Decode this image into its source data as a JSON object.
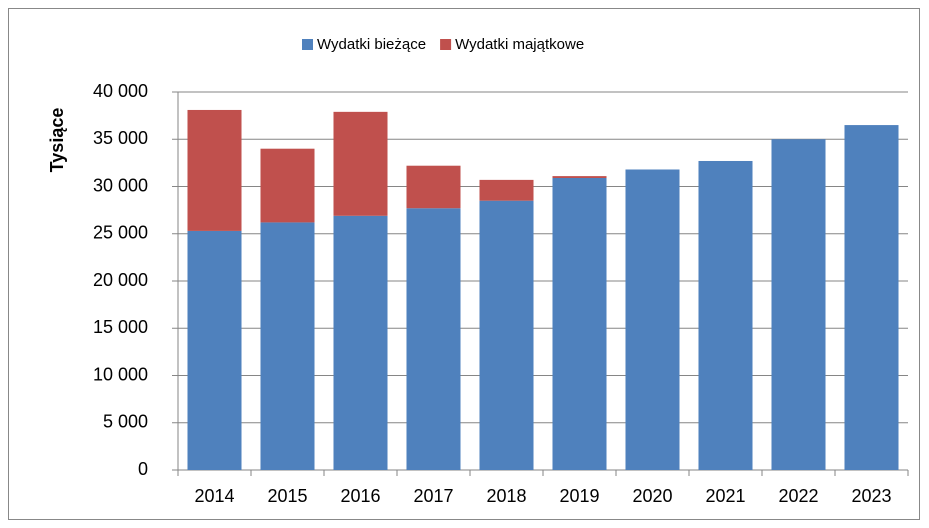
{
  "chart_data": {
    "type": "stacked_bar",
    "y_axis_label": "Tysiące",
    "categories": [
      "2014",
      "2015",
      "2016",
      "2017",
      "2018",
      "2019",
      "2020",
      "2021",
      "2022",
      "2023"
    ],
    "series": [
      {
        "name": "Wydatki bieżące",
        "color": "#4f81bd",
        "values": [
          25300,
          26200,
          26900,
          27700,
          28500,
          30900,
          31800,
          32700,
          35000,
          36500
        ]
      },
      {
        "name": "Wydatki majątkowe",
        "color": "#c0504d",
        "values": [
          12800,
          7800,
          11000,
          4500,
          2200,
          200,
          0,
          0,
          0,
          0
        ]
      }
    ],
    "ylim": [
      0,
      40000
    ],
    "yticks": [
      0,
      {
        "value": 5000,
        "label": "5 000"
      },
      {
        "value": 10000,
        "label": "10 000"
      },
      {
        "value": 15000,
        "label": "15 000"
      },
      {
        "value": 20000,
        "label": "20 000"
      },
      {
        "value": 25000,
        "label": "25 000"
      },
      {
        "value": 30000,
        "label": "30 000"
      },
      {
        "value": 35000,
        "label": "35 000"
      },
      {
        "value": 40000,
        "label": "40 000"
      }
    ],
    "grid": true,
    "legend": "top"
  }
}
